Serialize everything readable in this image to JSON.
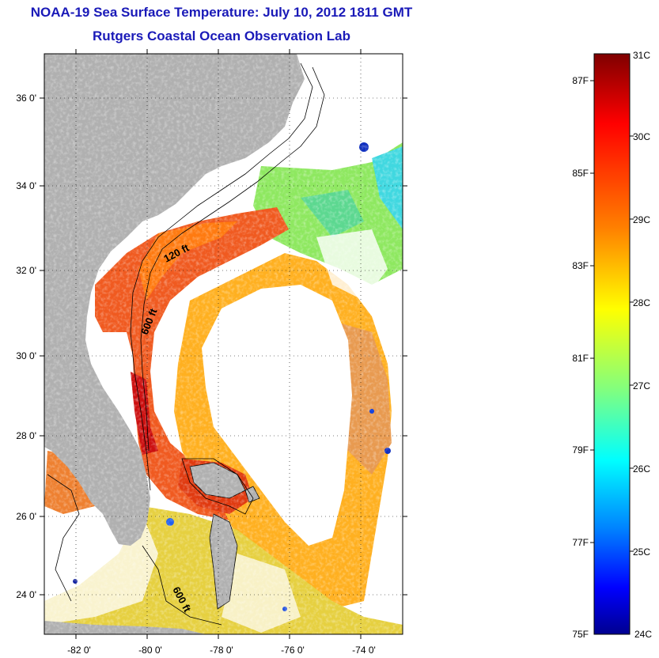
{
  "header": {
    "title": "NOAA-19 Sea Surface Temperature:  July 10, 2012 1811 GMT",
    "subtitle": "Rutgers Coastal Ocean Observation Lab"
  },
  "axes": {
    "x_ticks": [
      "-82 0'",
      "-80 0'",
      "-78 0'",
      "-76 0'",
      "-74 0'"
    ],
    "y_ticks": [
      "36 0'",
      "34 0'",
      "32 0'",
      "30 0'",
      "28 0'",
      "26 0'",
      "24 0'"
    ],
    "lon_range": [
      -83,
      -73
    ],
    "lat_range": [
      23,
      37
    ]
  },
  "contours": {
    "labels": [
      "120 ft",
      "600 ft",
      "600 ft"
    ]
  },
  "colorbar": {
    "celsius_labels": [
      "31C",
      "30C",
      "29C",
      "28C",
      "27C",
      "26C",
      "25C",
      "24C"
    ],
    "fahrenheit_labels": [
      "87F",
      "85F",
      "83F",
      "81F",
      "79F",
      "77F",
      "75F"
    ],
    "colormap": "jet",
    "colors": [
      "#7f0000",
      "#ff0000",
      "#ff8000",
      "#ffff00",
      "#80ff80",
      "#00ffff",
      "#0080ff",
      "#0000ff",
      "#00008f"
    ]
  },
  "map": {
    "land_color": "#b0b0b0",
    "cloud_color": "#ffffff"
  }
}
